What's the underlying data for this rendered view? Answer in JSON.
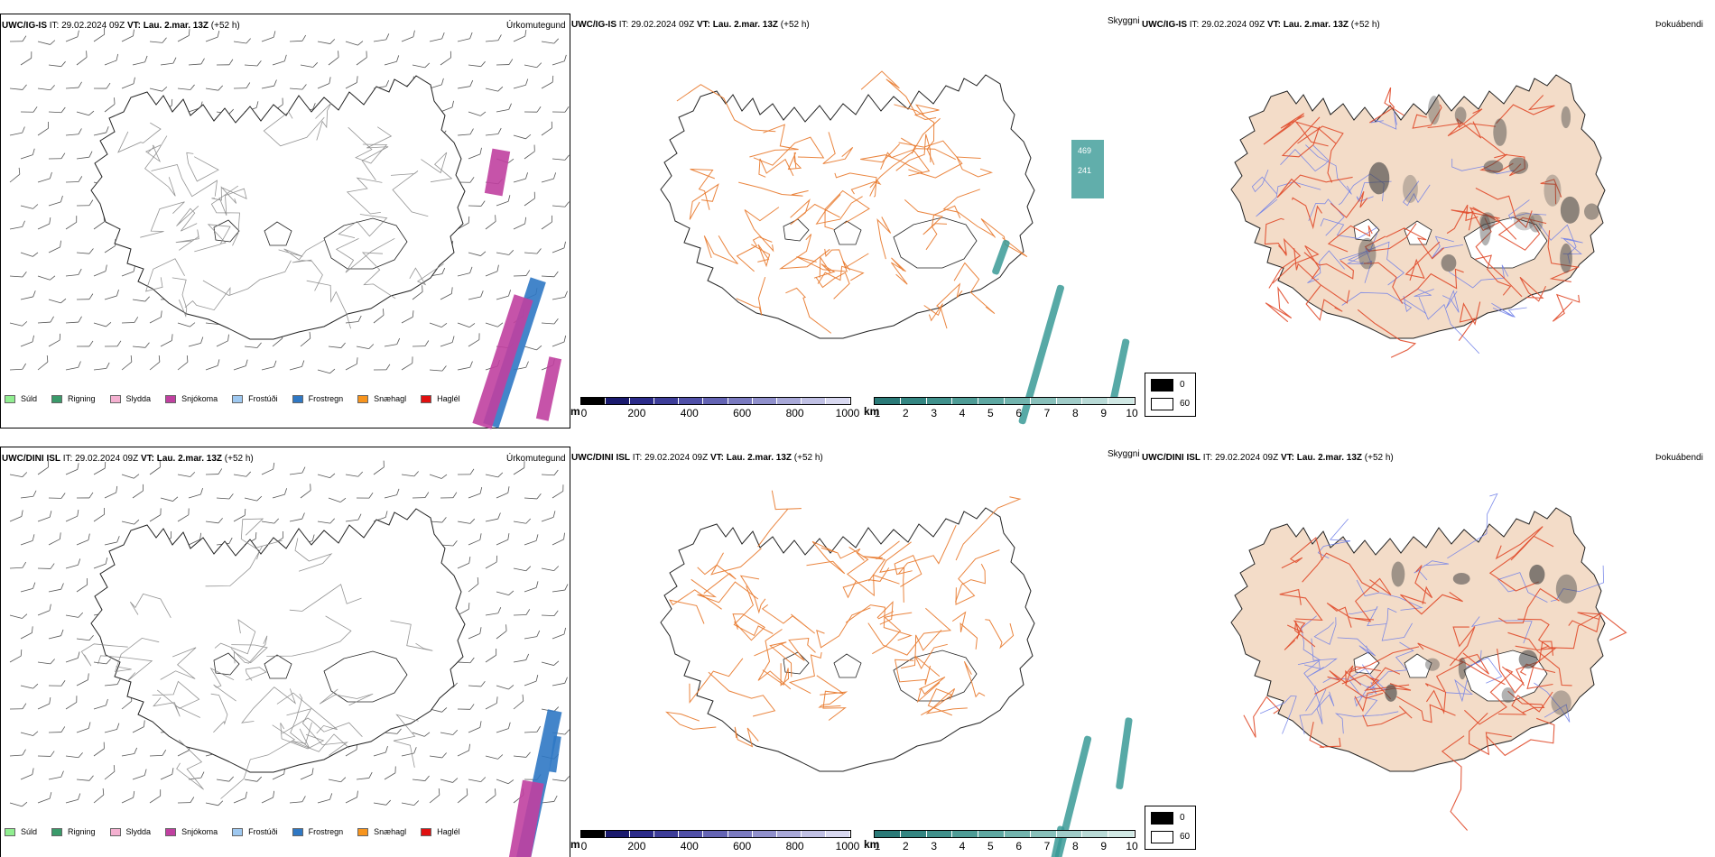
{
  "rows": [
    {
      "model": "UWC/IG-IS",
      "it_label": "IT:",
      "it_value": "29.02.2024 09Z",
      "vt_label": "VT:",
      "vt_value": "Lau. 2.mar. 13Z",
      "lead": "(+52 h)"
    },
    {
      "model": "UWC/DINI ISL",
      "it_label": "IT:",
      "it_value": "29.02.2024 09Z",
      "vt_label": "VT:",
      "vt_value": "Lau. 2.mar. 13Z",
      "lead": "(+52 h)"
    }
  ],
  "panel_labels": {
    "precip": "Úrkomutegund",
    "visibility": "Skyggni",
    "fog": "Þokuábendi"
  },
  "precip_legend": [
    {
      "label": "Súld",
      "color": "#90ee90"
    },
    {
      "label": "Rigning",
      "color": "#3a9a6a"
    },
    {
      "label": "Slydda",
      "color": "#f4b0d0"
    },
    {
      "label": "Snjókoma",
      "color": "#c040a0"
    },
    {
      "label": "Frostúði",
      "color": "#9ec8f0"
    },
    {
      "label": "Frostregn",
      "color": "#2f78c4"
    },
    {
      "label": "Snæhagl",
      "color": "#f7941d"
    },
    {
      "label": "Haglél",
      "color": "#e01010"
    }
  ],
  "elevation_bar": {
    "unit": "m",
    "ticks": [
      "0",
      "200",
      "400",
      "600",
      "800",
      "1000"
    ],
    "colors": [
      "#000000",
      "#1a1a6e",
      "#2b2b8a",
      "#3d3d99",
      "#5050a8",
      "#6464b4",
      "#7a7ac0",
      "#9090cc",
      "#a8a8d8",
      "#c0c0e4",
      "#d8d8f0"
    ]
  },
  "visibility_bar": {
    "unit": "km",
    "ticks": [
      "1",
      "2",
      "3",
      "4",
      "5",
      "6",
      "7",
      "8",
      "9",
      "10"
    ],
    "colors": [
      "#2a7a78",
      "#348682",
      "#40918c",
      "#4e9c96",
      "#5ea8a2",
      "#72b4ae",
      "#88c0ba",
      "#a0ccc8",
      "#b8dad6",
      "#d0e8e4"
    ]
  },
  "fog_legend": {
    "dark_label": "0",
    "light_label": "60"
  },
  "visibility_annotations": [
    "469",
    "241"
  ],
  "colors": {
    "land": "#f3dcc8",
    "roads": "#e8782a",
    "roads_red": "#e04a2a",
    "rivers": "#7080e8",
    "coast": "#222222",
    "snow_band": "#c040a0",
    "frost_band": "#2f78c4",
    "vis_band": "#3a9a96"
  }
}
